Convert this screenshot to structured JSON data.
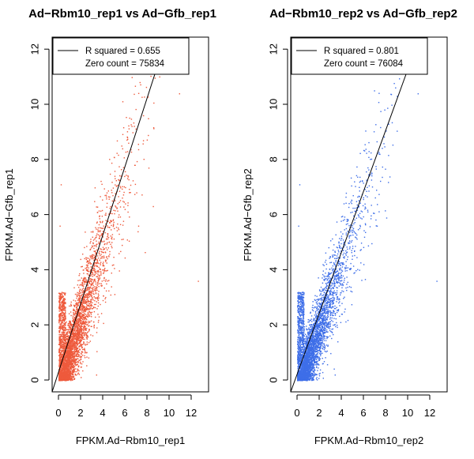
{
  "chart_data": [
    {
      "type": "scatter",
      "title": "Ad−Rbm10_rep1 vs Ad−Gfb_rep1",
      "xlabel": "FPKM.Ad−Rbm10_rep1",
      "ylabel": "FPKM.Ad−Gfb_rep1",
      "xlim": [
        0,
        12.5
      ],
      "ylim": [
        0,
        12.3
      ],
      "xticks": [
        "0",
        "2",
        "4",
        "6",
        "8",
        "10",
        "12"
      ],
      "yticks": [
        "0",
        "2",
        "4",
        "6",
        "8",
        "10",
        "12"
      ],
      "point_color": "#ee5a3c",
      "fit_line": {
        "intercept": -0.3,
        "slope": 1.3
      },
      "legend": {
        "position": "top-left",
        "entries": [
          "R squared = 0.655",
          "Zero count = 75834"
        ]
      },
      "spread": 0.55,
      "grid": false
    },
    {
      "type": "scatter",
      "title": "Ad−Rbm10_rep2 vs Ad−Gfb_rep2",
      "xlabel": "FPKM.Ad−Rbm10_rep2",
      "ylabel": "FPKM.Ad−Gfb_rep2",
      "xlim": [
        0,
        12.5
      ],
      "ylim": [
        0,
        12.3
      ],
      "xticks": [
        "0",
        "2",
        "4",
        "6",
        "8",
        "10",
        "12"
      ],
      "yticks": [
        "0",
        "2",
        "4",
        "6",
        "8",
        "10",
        "12"
      ],
      "point_color": "#3e6ee8",
      "fit_line": {
        "intercept": -0.3,
        "slope": 1.15
      },
      "legend": {
        "position": "top-left",
        "entries": [
          "R squared = 0.801",
          "Zero count = 76084"
        ]
      },
      "spread": 0.42,
      "grid": false
    }
  ]
}
